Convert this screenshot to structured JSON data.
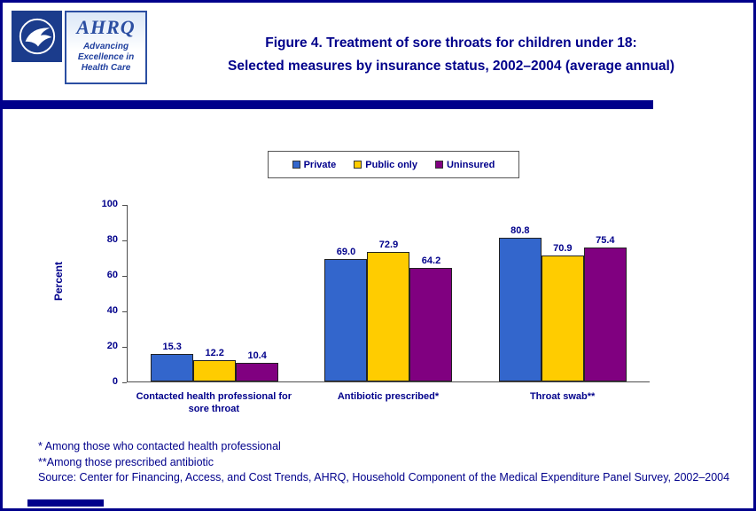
{
  "page": {
    "background": "#FFFFFF",
    "border_color": "#00008B"
  },
  "header": {
    "hhs_logo_name": "hhs-seal",
    "ahrq_logo": {
      "acronym": "AHRQ",
      "tagline_line1": "Advancing",
      "tagline_line2": "Excellence in",
      "tagline_line3": "Health Care"
    },
    "title_line1": "Figure 4. Treatment of sore throats for children under 18:",
    "title_line2": "Selected measures by insurance status, 2002–2004 (average annual)"
  },
  "chart_data": {
    "type": "bar",
    "title": "Figure 4. Treatment of sore throats for children under 18: Selected measures by insurance status, 2002–2004 (average annual)",
    "categories": [
      "Contacted health professional for sore throat",
      "Antibiotic prescribed*",
      "Throat swab**"
    ],
    "series": [
      {
        "name": "Private",
        "color": "#3366CC",
        "values": [
          15.3,
          69.0,
          80.8
        ],
        "labels": [
          "15.3",
          "69.0",
          "80.8"
        ]
      },
      {
        "name": "Public only",
        "color": "#FFCC00",
        "values": [
          12.2,
          72.9,
          70.9
        ],
        "labels": [
          "12.2",
          "72.9",
          "70.9"
        ]
      },
      {
        "name": "Uninsured",
        "color": "#800080",
        "values": [
          10.4,
          64.2,
          75.4
        ],
        "labels": [
          "10.4",
          "64.2",
          "75.4"
        ]
      }
    ],
    "xlabel": "",
    "ylabel": "Percent",
    "ylim": [
      0,
      100
    ],
    "yticks": [
      0,
      20,
      40,
      60,
      80,
      100
    ],
    "grid": false,
    "legend_position": "top-center"
  },
  "footnotes": {
    "line1": "* Among those who contacted health professional",
    "line2": "**Among those prescribed antibiotic",
    "source": "Source: Center for Financing, Access, and Cost Trends, AHRQ, Household Component of the Medical Expenditure Panel Survey, 2002–2004"
  }
}
